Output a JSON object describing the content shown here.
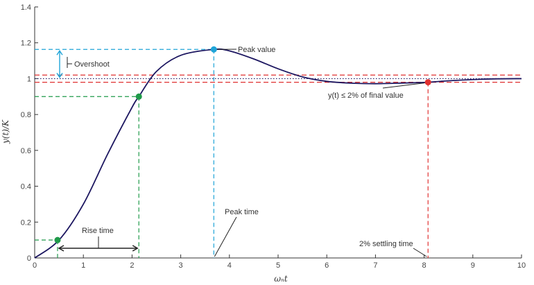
{
  "chart_data": {
    "type": "line",
    "xlabel": "ωₙt",
    "ylabel": "y(t)/K",
    "xlim": [
      0,
      10
    ],
    "ylim": [
      0,
      1.4
    ],
    "x_ticks": [
      0,
      1,
      2,
      3,
      4,
      5,
      6,
      7,
      8,
      9,
      10
    ],
    "y_ticks": [
      0,
      0.2,
      0.4,
      0.6,
      0.8,
      1,
      1.2,
      1.4
    ],
    "y_tick_labels": [
      "0",
      "0.2",
      "0.4",
      "0.6",
      "0.8",
      "1",
      "1.2",
      "1.4"
    ],
    "response": {
      "x": [
        0,
        0.5,
        1,
        1.5,
        2,
        2.14,
        2.5,
        3,
        3.68,
        4,
        4.5,
        5,
        5.5,
        6,
        6.5,
        7,
        7.5,
        8,
        8.08,
        8.5,
        9,
        9.5,
        10
      ],
      "y": [
        0,
        0.1,
        0.3,
        0.58,
        0.84,
        0.9,
        1.04,
        1.13,
        1.163,
        1.155,
        1.11,
        1.055,
        1.01,
        0.985,
        0.975,
        0.972,
        0.975,
        0.979,
        0.98,
        0.988,
        0.995,
        0.999,
        1.0
      ]
    },
    "final_value": 1,
    "settling_band": [
      0.98,
      1.02
    ],
    "rise_time": {
      "x_start": 0.47,
      "x_end": 2.14,
      "y_start": 0.1,
      "y_end": 0.9
    },
    "peak": {
      "x": 3.68,
      "y": 1.163
    },
    "settling_point": {
      "x": 8.08,
      "y": 0.98
    },
    "annotations": {
      "peak_value": "Peak value",
      "overshoot": "Overshoot",
      "settling_note": "y(t) ≤ 2% of final value",
      "rise_time": "Rise time",
      "peak_time": "Peak time",
      "settling_time": "2% settling time"
    },
    "colors": {
      "curve": "#1c1660",
      "band": "#e03030",
      "final_value_line": "#1c1660",
      "peak_markers": "#1fa4d8",
      "rise_markers": "#1f9a4a",
      "settling_marker": "#e03030",
      "arrow": "#222222"
    },
    "grid": false
  }
}
